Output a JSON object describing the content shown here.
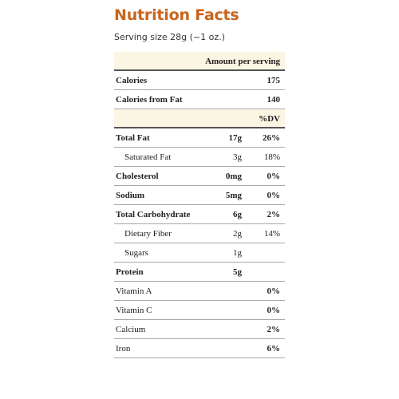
{
  "title": "Nutrition Facts",
  "serving_size": "Serving size 28g (~1 oz.)",
  "amount_per_serving_label": "Amount per serving",
  "calories": {
    "label": "Calories",
    "value": "175"
  },
  "calories_from_fat": {
    "label": "Calories from Fat",
    "value": "140"
  },
  "dv_header": "%DV",
  "nutrients": [
    {
      "label": "Total Fat",
      "amount": "17g",
      "dv": "26%"
    },
    {
      "label": "Saturated Fat",
      "amount": "3g",
      "dv": "18%"
    },
    {
      "label": "Cholesterol",
      "amount": "0mg",
      "dv": "0%"
    },
    {
      "label": "Sodium",
      "amount": "5mg",
      "dv": "0%"
    },
    {
      "label": "Total Carbohydrate",
      "amount": "6g",
      "dv": "2%"
    },
    {
      "label": "Dietary Fiber",
      "amount": "2g",
      "dv": "14%"
    },
    {
      "label": "Sugars",
      "amount": "1g",
      "dv": ""
    },
    {
      "label": "Protein",
      "amount": "5g",
      "dv": ""
    }
  ],
  "vitamins": [
    {
      "label": "Vitamin A",
      "dv": "0%"
    },
    {
      "label": "Vitamin C",
      "dv": "0%"
    },
    {
      "label": "Calcium",
      "dv": "2%"
    },
    {
      "label": "Iron",
      "dv": "6%"
    }
  ]
}
